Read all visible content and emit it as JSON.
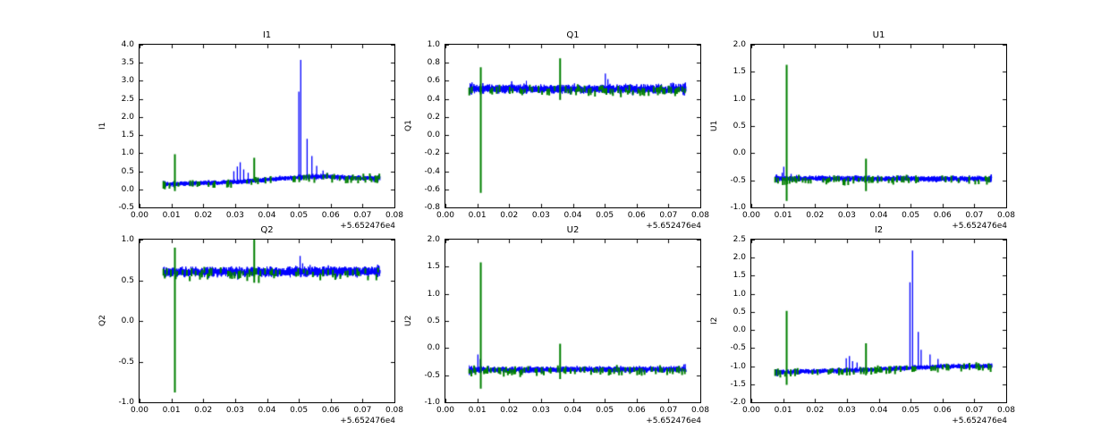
{
  "figure": {
    "colors": {
      "signal_blue": "#0000ff",
      "marker_green": "#008000",
      "axes_black": "#000000",
      "background_white": "#ffffff"
    }
  },
  "x_axis": {
    "xlim": [
      0,
      0.08
    ],
    "tick_labels": [
      "0.00",
      "0.01",
      "0.02",
      "0.03",
      "0.04",
      "0.05",
      "0.06",
      "0.07",
      "0.08"
    ],
    "offset_text": "+5.652476e4",
    "data_range": [
      0.0075,
      0.0755
    ]
  },
  "chart_data": [
    {
      "type": "line",
      "title": "I1",
      "ylabel": "I1",
      "ylim": [
        -0.5,
        4.0
      ],
      "ytick_labels": [
        "-0.5",
        "0.0",
        "0.5",
        "1.0",
        "1.5",
        "2.0",
        "2.5",
        "3.0",
        "3.5",
        "4.0"
      ],
      "signal": {
        "baseline": [
          [
            0.0075,
            0.14
          ],
          [
            0.02,
            0.17
          ],
          [
            0.03,
            0.2
          ],
          [
            0.04,
            0.27
          ],
          [
            0.05,
            0.33
          ],
          [
            0.057,
            0.36
          ],
          [
            0.065,
            0.32
          ],
          [
            0.0755,
            0.31
          ]
        ],
        "noise": 0.09,
        "spikes": [
          [
            0.0296,
            0.5
          ],
          [
            0.0307,
            0.63
          ],
          [
            0.0316,
            0.75
          ],
          [
            0.0327,
            0.55
          ],
          [
            0.0341,
            0.46
          ],
          [
            0.05,
            2.7
          ],
          [
            0.0506,
            3.58
          ],
          [
            0.0526,
            1.4
          ],
          [
            0.0541,
            0.92
          ],
          [
            0.0556,
            0.65
          ],
          [
            0.0576,
            0.52
          ],
          [
            0.059,
            0.45
          ]
        ]
      },
      "markers": {
        "spikes": [
          [
            0.0111,
            0.97,
            -0.05
          ],
          [
            0.036,
            0.87,
            0.24
          ]
        ]
      }
    },
    {
      "type": "line",
      "title": "Q1",
      "ylabel": "Q1",
      "ylim": [
        -0.8,
        1.0
      ],
      "ytick_labels": [
        "-0.8",
        "-0.6",
        "-0.4",
        "-0.2",
        "0.0",
        "0.2",
        "0.4",
        "0.6",
        "0.8",
        "1.0"
      ],
      "signal": {
        "baseline": [
          [
            0.0075,
            0.51
          ],
          [
            0.0755,
            0.51
          ]
        ],
        "noise": 0.065,
        "spikes": [
          [
            0.0502,
            0.68
          ],
          [
            0.051,
            0.62
          ]
        ]
      },
      "markers": {
        "spikes": [
          [
            0.0111,
            0.75,
            -0.64
          ],
          [
            0.036,
            0.85,
            0.39
          ]
        ]
      }
    },
    {
      "type": "line",
      "title": "U1",
      "ylabel": "U1",
      "ylim": [
        -1.0,
        2.0
      ],
      "ytick_labels": [
        "-1.0",
        "-0.5",
        "0.0",
        "0.5",
        "1.0",
        "1.5",
        "2.0"
      ],
      "signal": {
        "baseline": [
          [
            0.0075,
            -0.47
          ],
          [
            0.0755,
            -0.47
          ]
        ],
        "noise": 0.07,
        "spikes": [
          [
            0.0097,
            -0.36
          ],
          [
            0.0102,
            -0.25
          ],
          [
            0.0125,
            -0.38
          ]
        ]
      },
      "markers": {
        "spikes": [
          [
            0.0111,
            1.63,
            -0.88
          ],
          [
            0.036,
            -0.1,
            -0.7
          ]
        ]
      }
    },
    {
      "type": "line",
      "title": "Q2",
      "ylabel": "Q2",
      "ylim": [
        -1.0,
        1.0
      ],
      "ytick_labels": [
        "-1.0",
        "-0.5",
        "0.0",
        "0.5",
        "1.0"
      ],
      "signal": {
        "baseline": [
          [
            0.0075,
            0.6
          ],
          [
            0.0755,
            0.61
          ]
        ],
        "noise": 0.08,
        "spikes": [
          [
            0.0504,
            0.8
          ],
          [
            0.0512,
            0.71
          ]
        ]
      },
      "markers": {
        "spikes": [
          [
            0.0111,
            0.9,
            -0.88
          ],
          [
            0.036,
            1.0,
            0.47
          ]
        ]
      }
    },
    {
      "type": "line",
      "title": "U2",
      "ylabel": "U2",
      "ylim": [
        -1.0,
        2.0
      ],
      "ytick_labels": [
        "-1.0",
        "-0.5",
        "0.0",
        "0.5",
        "1.0",
        "1.5",
        "2.0"
      ],
      "signal": {
        "baseline": [
          [
            0.0075,
            -0.4
          ],
          [
            0.0755,
            -0.39
          ]
        ],
        "noise": 0.075,
        "spikes": [
          [
            0.0102,
            -0.12
          ],
          [
            0.0109,
            -0.2
          ]
        ]
      },
      "markers": {
        "spikes": [
          [
            0.0111,
            1.58,
            -0.75
          ],
          [
            0.036,
            0.08,
            -0.57
          ]
        ]
      }
    },
    {
      "type": "line",
      "title": "I2",
      "ylabel": "I2",
      "ylim": [
        -2.0,
        2.5
      ],
      "ytick_labels": [
        "-2.0",
        "-1.5",
        "-1.0",
        "-0.5",
        "0.0",
        "0.5",
        "1.0",
        "1.5",
        "2.0",
        "2.5"
      ],
      "signal": {
        "baseline": [
          [
            0.0075,
            -1.17
          ],
          [
            0.03,
            -1.12
          ],
          [
            0.045,
            -1.07
          ],
          [
            0.06,
            -1.01
          ],
          [
            0.0755,
            -1.0
          ]
        ],
        "noise": 0.09,
        "spikes": [
          [
            0.0298,
            -0.78
          ],
          [
            0.0308,
            -0.72
          ],
          [
            0.0318,
            -0.86
          ],
          [
            0.0332,
            -0.9
          ],
          [
            0.0498,
            1.32
          ],
          [
            0.0506,
            2.2
          ],
          [
            0.0524,
            -0.05
          ],
          [
            0.0533,
            -0.55
          ],
          [
            0.0561,
            -0.68
          ],
          [
            0.0586,
            -0.8
          ]
        ]
      },
      "markers": {
        "spikes": [
          [
            0.0111,
            0.53,
            -1.52
          ],
          [
            0.036,
            -0.37,
            -1.25
          ]
        ]
      }
    }
  ]
}
